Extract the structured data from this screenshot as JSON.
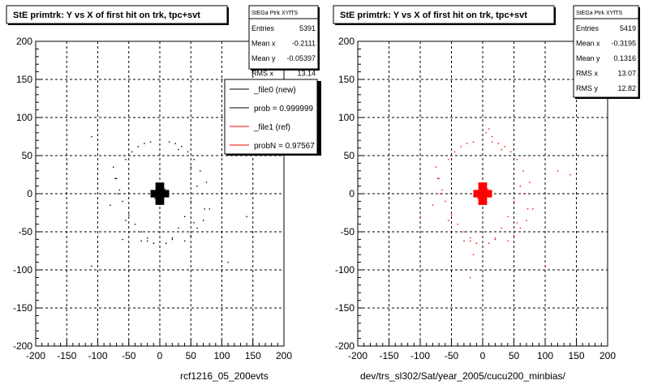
{
  "chart_data": [
    {
      "type": "scatter",
      "title": "StE primtrk: Y vs X of first hit on trk, tpc+svt",
      "xlabel": "rcf1216_05_200evts",
      "ylabel": "",
      "xlim": [
        -200,
        200
      ],
      "ylim": [
        -200,
        200
      ],
      "x_ticks": [
        "-200",
        "-150",
        "-100",
        "-50",
        "0",
        "50",
        "100",
        "150",
        "200"
      ],
      "y_ticks": [
        "200",
        "150",
        "100",
        "50",
        "0",
        "-50",
        "-100",
        "-150",
        "-200"
      ],
      "grid": true,
      "marker_color": "#000000",
      "series": [
        {
          "x": [
            -5,
            5,
            0,
            -8,
            8,
            3,
            -3,
            0,
            4,
            -4,
            -55,
            -45,
            -35,
            -25,
            -15,
            15,
            25,
            35,
            45,
            55,
            65,
            60,
            50,
            40,
            30,
            20,
            10,
            -10,
            -20,
            -30,
            -40,
            -50,
            -60,
            -65,
            -70,
            -75,
            -80,
            80,
            75,
            70,
            60,
            50,
            40,
            -30,
            -20,
            -10,
            10,
            20,
            30,
            -55,
            55,
            -68,
            68,
            -72,
            72,
            -150,
            140,
            -110,
            -25,
            110,
            50,
            -110,
            160,
            -60
          ],
          "y": [
            0,
            0,
            8,
            -6,
            6,
            12,
            -12,
            -14,
            3,
            -3,
            45,
            55,
            62,
            66,
            68,
            68,
            66,
            62,
            55,
            45,
            30,
            10,
            -10,
            -30,
            -45,
            -58,
            -65,
            -65,
            -58,
            -50,
            -40,
            -28,
            -10,
            5,
            20,
            35,
            -15,
            -20,
            15,
            -35,
            -45,
            -55,
            -62,
            -62,
            -62,
            -65,
            -65,
            -60,
            58,
            -35,
            -38,
            0,
            0,
            20,
            -20,
            40,
            -30,
            75,
            100,
            -90,
            35,
            -95,
            55,
            -60
          ]
        }
      ],
      "stats": {
        "name": "StEGa Ptrk XYfTS",
        "rows": [
          {
            "label": "Entries",
            "value": "5391"
          },
          {
            "label": "Mean x",
            "value": "-0.2111"
          },
          {
            "label": "Mean y",
            "value": "-0.05397"
          },
          {
            "label": "RMS x",
            "value": "13.14"
          }
        ]
      },
      "legend": {
        "placement": "top-right",
        "entries": [
          {
            "label": "_file0 (new)",
            "color": "#000000"
          },
          {
            "label": "prob = 0.999999",
            "color": "#000000"
          },
          {
            "label": "_file1 (ref)",
            "color": "#ff0000"
          },
          {
            "label": "probN = 0.97567",
            "color": "#ff0000"
          }
        ]
      }
    },
    {
      "type": "scatter",
      "title": "StE primtrk: Y vs X of first hit on trk, tpc+svt",
      "xlabel": "dev/trs_sl302/Sat/year_2005/cucu200_minbias/",
      "ylabel": "",
      "xlim": [
        -200,
        200
      ],
      "ylim": [
        -200,
        200
      ],
      "x_ticks": [
        "-200",
        "-150",
        "-100",
        "-50",
        "0",
        "50",
        "100",
        "150",
        "200"
      ],
      "y_ticks": [
        "200",
        "150",
        "100",
        "50",
        "0",
        "-50",
        "-100",
        "-150",
        "-200"
      ],
      "grid": true,
      "marker_color": "#ff0000",
      "series": [
        {
          "x": [
            -5,
            5,
            0,
            -8,
            8,
            3,
            -3,
            0,
            4,
            -4,
            -55,
            -45,
            -35,
            -25,
            -15,
            15,
            25,
            35,
            45,
            55,
            65,
            60,
            50,
            40,
            30,
            20,
            10,
            -10,
            -20,
            -30,
            -40,
            -50,
            -60,
            -65,
            -70,
            -75,
            -80,
            80,
            75,
            70,
            60,
            50,
            40,
            -30,
            -20,
            -10,
            10,
            20,
            30,
            -55,
            55,
            -68,
            68,
            -72,
            72,
            5,
            10,
            15,
            -15,
            -100,
            120,
            140,
            -20,
            100
          ],
          "y": [
            0,
            0,
            8,
            -6,
            6,
            12,
            -12,
            -14,
            3,
            -3,
            45,
            55,
            62,
            66,
            68,
            68,
            66,
            62,
            55,
            45,
            30,
            10,
            -10,
            -30,
            -45,
            -58,
            -65,
            -65,
            -58,
            -50,
            -40,
            -28,
            -10,
            5,
            20,
            35,
            -15,
            -20,
            15,
            -35,
            -45,
            -55,
            -62,
            -62,
            -62,
            -65,
            -65,
            -60,
            58,
            -35,
            -38,
            0,
            0,
            20,
            -20,
            80,
            85,
            75,
            -80,
            -30,
            30,
            25,
            -110,
            -95
          ]
        }
      ],
      "stats": {
        "name": "StEGa Ptrk XYfTS",
        "rows": [
          {
            "label": "Entries",
            "value": "5419"
          },
          {
            "label": "Mean x",
            "value": "-0.3195"
          },
          {
            "label": "Mean y",
            "value": "0.1316"
          },
          {
            "label": "RMS x",
            "value": "13.07"
          },
          {
            "label": "RMS y",
            "value": "12.82"
          }
        ]
      }
    }
  ]
}
